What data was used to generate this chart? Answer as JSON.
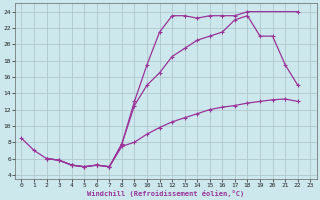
{
  "xlabel": "Windchill (Refroidissement éolien,°C)",
  "bg_color": "#cce8ec",
  "grid_color": "#b0c8cc",
  "line_color": "#993399",
  "xlim": [
    -0.5,
    23.5
  ],
  "ylim": [
    3.5,
    25
  ],
  "xticks": [
    0,
    1,
    2,
    3,
    4,
    5,
    6,
    7,
    8,
    9,
    10,
    11,
    12,
    13,
    14,
    15,
    16,
    17,
    18,
    19,
    20,
    21,
    22,
    23
  ],
  "yticks": [
    4,
    6,
    8,
    10,
    12,
    14,
    16,
    18,
    20,
    22,
    24
  ],
  "line1_x": [
    0,
    1,
    2,
    3,
    4,
    5,
    6,
    7,
    8,
    9,
    10,
    11,
    12,
    13,
    14,
    15,
    16,
    17,
    18,
    22
  ],
  "line1_y": [
    8.5,
    7.0,
    6.0,
    5.8,
    5.2,
    5.0,
    5.2,
    5.0,
    7.8,
    13.0,
    17.5,
    21.5,
    23.5,
    23.5,
    23.2,
    23.5,
    23.5,
    23.5,
    24.0,
    24.0
  ],
  "line2_x": [
    2,
    3,
    4,
    5,
    6,
    7,
    8,
    9,
    10,
    11,
    12,
    13,
    14,
    15,
    16,
    17,
    18,
    19,
    20,
    21,
    22
  ],
  "line2_y": [
    6.0,
    5.8,
    5.2,
    5.0,
    5.2,
    5.0,
    7.8,
    12.5,
    15.0,
    16.5,
    18.5,
    19.5,
    20.5,
    21.0,
    21.5,
    23.0,
    23.5,
    21.0,
    21.0,
    17.5,
    15.0
  ],
  "line3_x": [
    2,
    3,
    4,
    5,
    6,
    7,
    8,
    9,
    10,
    11,
    12,
    13,
    14,
    15,
    16,
    17,
    18,
    19,
    20,
    21,
    22
  ],
  "line3_y": [
    6.0,
    5.8,
    5.2,
    5.0,
    5.2,
    5.0,
    7.5,
    8.0,
    9.0,
    9.8,
    10.5,
    11.0,
    11.5,
    12.0,
    12.3,
    12.5,
    12.8,
    13.0,
    13.2,
    13.3,
    13.0
  ]
}
